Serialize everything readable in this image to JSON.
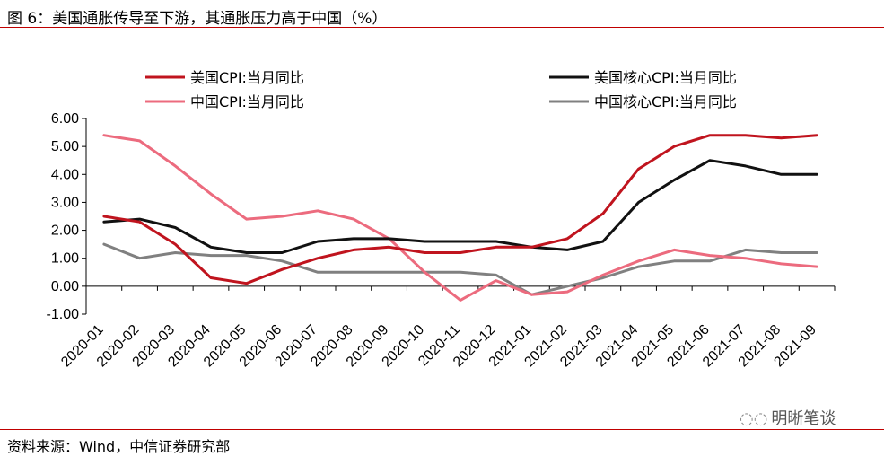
{
  "title": "图 6：美国通胀传导至下游，其通胀压力高于中国（%）",
  "source": "资料来源：Wind，中信证券研究部",
  "watermark": "明晰笔谈",
  "chart_data": {
    "type": "line",
    "title": "图 6：美国通胀传导至下游，其通胀压力高于中国（%）",
    "x": [
      "2020-01",
      "2020-02",
      "2020-03",
      "2020-04",
      "2020-05",
      "2020-06",
      "2020-07",
      "2020-08",
      "2020-09",
      "2020-10",
      "2020-11",
      "2020-12",
      "2021-01",
      "2021-02",
      "2021-03",
      "2021-04",
      "2021-05",
      "2021-06",
      "2021-07",
      "2021-08",
      "2021-09"
    ],
    "ylim": [
      -1.0,
      6.0
    ],
    "yticks": [
      "6.00",
      "5.00",
      "4.00",
      "3.00",
      "2.00",
      "1.00",
      "0.00",
      "-1.00"
    ],
    "grid": false,
    "legend": "top",
    "series": [
      {
        "name": "美国CPI:当月同比",
        "color": "#c0141e",
        "values": [
          2.5,
          2.3,
          1.5,
          0.3,
          0.1,
          0.6,
          1.0,
          1.3,
          1.4,
          1.2,
          1.2,
          1.4,
          1.4,
          1.7,
          2.6,
          4.2,
          5.0,
          5.4,
          5.4,
          5.3,
          5.4
        ]
      },
      {
        "name": "美国核心CPI:当月同比",
        "color": "#111111",
        "values": [
          2.3,
          2.4,
          2.1,
          1.4,
          1.2,
          1.2,
          1.6,
          1.7,
          1.7,
          1.6,
          1.6,
          1.6,
          1.4,
          1.3,
          1.6,
          3.0,
          3.8,
          4.5,
          4.3,
          4.0,
          4.0
        ]
      },
      {
        "name": "中国CPI:当月同比",
        "color": "#ec6b7e",
        "values": [
          5.4,
          5.2,
          4.3,
          3.3,
          2.4,
          2.5,
          2.7,
          2.4,
          1.7,
          0.5,
          -0.5,
          0.2,
          -0.3,
          -0.2,
          0.4,
          0.9,
          1.3,
          1.1,
          1.0,
          0.8,
          0.7
        ]
      },
      {
        "name": "中国核心CPI:当月同比",
        "color": "#808080",
        "values": [
          1.5,
          1.0,
          1.2,
          1.1,
          1.1,
          0.9,
          0.5,
          0.5,
          0.5,
          0.5,
          0.5,
          0.4,
          -0.3,
          0.0,
          0.3,
          0.7,
          0.9,
          0.9,
          1.3,
          1.2,
          1.2
        ]
      }
    ]
  }
}
